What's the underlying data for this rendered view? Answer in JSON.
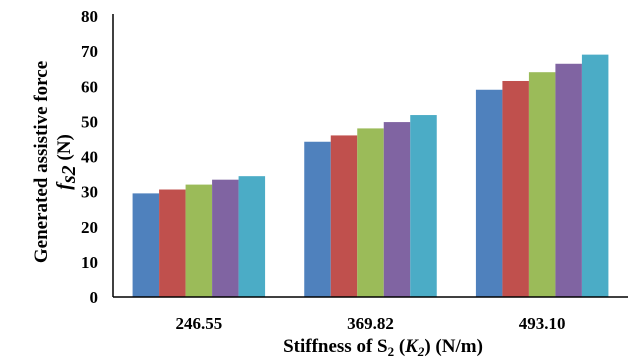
{
  "chart_data": {
    "type": "bar",
    "categories": [
      "246.55",
      "369.82",
      "493.10"
    ],
    "series": [
      {
        "values": [
          29.5,
          44.2,
          59.0
        ],
        "color": "#4f81bd"
      },
      {
        "values": [
          30.6,
          46.0,
          61.5
        ],
        "color": "#c0504d"
      },
      {
        "values": [
          32.0,
          48.0,
          64.0
        ],
        "color": "#9bbb59"
      },
      {
        "values": [
          33.4,
          49.8,
          66.4
        ],
        "color": "#8064a2"
      },
      {
        "values": [
          34.4,
          51.8,
          69.0
        ],
        "color": "#4bacc6"
      }
    ],
    "ylim": [
      0,
      80
    ],
    "yticks": [
      "0",
      "10",
      "20",
      "30",
      "40",
      "50",
      "60",
      "70",
      "80"
    ],
    "grid": false,
    "xlabel": {
      "prefix": "Stiffness of S",
      "sub1": "2",
      "mid": " (",
      "k": "K",
      "sub2": "2",
      "suffix": ") (N/m)"
    },
    "ylabel": {
      "line1": "Generated assistive force",
      "f": "f",
      "sub": "s2",
      "unit": " (N)"
    }
  }
}
